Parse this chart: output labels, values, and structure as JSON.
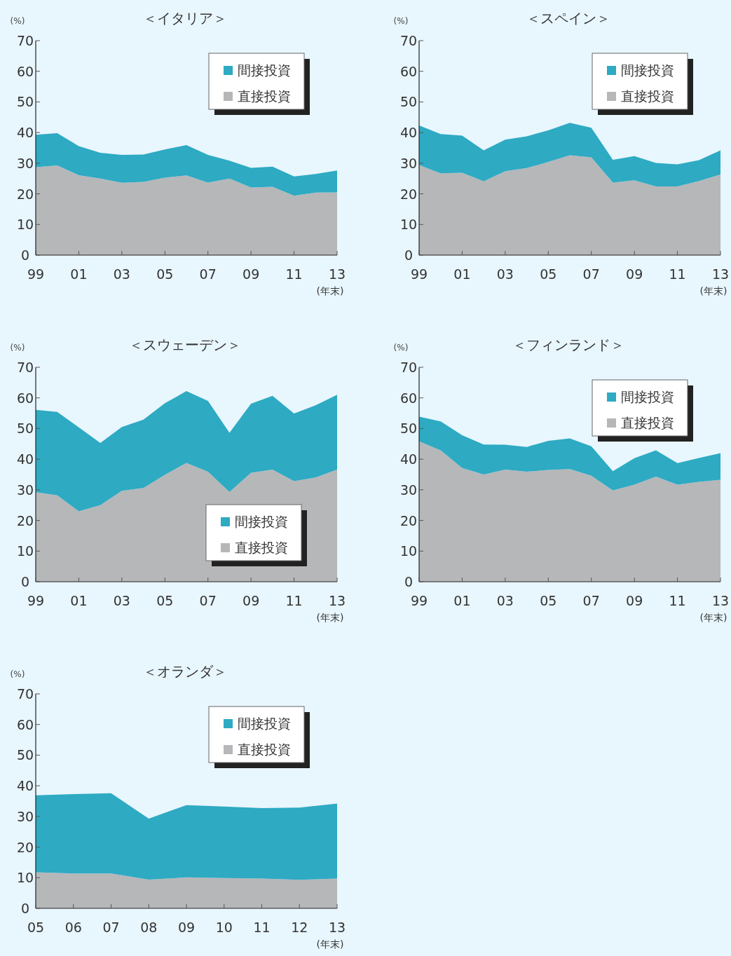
{
  "chart_data": [
    {
      "type": "area",
      "title": "＜イタリア＞",
      "ylabel": "(%)",
      "xlabel": "(年末)",
      "stacked": true,
      "legend": "top right",
      "ylim": [
        0,
        70
      ],
      "yticks": [
        0,
        10,
        20,
        30,
        40,
        50,
        60,
        70
      ],
      "categories": [
        "99",
        null,
        "01",
        null,
        "03",
        null,
        "05",
        null,
        "07",
        null,
        "09",
        null,
        "11",
        null,
        "13"
      ],
      "series": [
        {
          "name": "直接投資",
          "color": "#b6b7b9",
          "values": [
            28.7,
            29.3,
            26.1,
            25.0,
            23.6,
            23.9,
            25.3,
            26.0,
            23.7,
            25.0,
            22.1,
            22.3,
            19.4,
            20.4,
            20.5
          ]
        },
        {
          "name": "間接投資",
          "color": "#2eaac3",
          "values": [
            10.6,
            10.5,
            9.5,
            8.4,
            9.1,
            8.9,
            9.2,
            9.9,
            9.0,
            5.8,
            6.4,
            6.6,
            6.3,
            6.1,
            7.1
          ]
        }
      ]
    },
    {
      "type": "area",
      "title": "＜スペイン＞",
      "ylabel": "(%)",
      "xlabel": "(年末)",
      "stacked": true,
      "legend": "top right",
      "ylim": [
        0,
        70
      ],
      "yticks": [
        0,
        10,
        20,
        30,
        40,
        50,
        60,
        70
      ],
      "categories": [
        "99",
        null,
        "01",
        null,
        "03",
        null,
        "05",
        null,
        "07",
        null,
        "09",
        null,
        "11",
        null,
        "13"
      ],
      "series": [
        {
          "name": "直接投資",
          "color": "#b6b7b9",
          "values": [
            29.4,
            26.7,
            26.9,
            24.1,
            27.4,
            28.4,
            30.4,
            32.6,
            31.9,
            23.7,
            24.4,
            22.4,
            22.4,
            24.2,
            26.3
          ]
        },
        {
          "name": "間接投資",
          "color": "#2eaac3",
          "values": [
            12.9,
            12.8,
            12.1,
            10.1,
            10.3,
            10.4,
            10.3,
            10.6,
            9.7,
            7.4,
            7.9,
            7.7,
            7.2,
            6.8,
            7.9
          ]
        }
      ]
    },
    {
      "type": "area",
      "title": "＜スウェーデン＞",
      "ylabel": "(%)",
      "xlabel": "(年末)",
      "stacked": true,
      "legend": "bottom right",
      "ylim": [
        0,
        70
      ],
      "yticks": [
        0,
        10,
        20,
        30,
        40,
        50,
        60,
        70
      ],
      "categories": [
        "99",
        null,
        "01",
        null,
        "03",
        null,
        "05",
        null,
        "07",
        null,
        "09",
        null,
        "11",
        null,
        "13"
      ],
      "series": [
        {
          "name": "直接投資",
          "color": "#b6b7b9",
          "values": [
            29.2,
            28.2,
            23.0,
            25.0,
            29.7,
            30.6,
            34.9,
            38.8,
            35.9,
            29.3,
            35.6,
            36.6,
            32.8,
            34.0,
            36.6
          ]
        },
        {
          "name": "間接投資",
          "color": "#2eaac3",
          "values": [
            26.9,
            27.2,
            27.4,
            20.3,
            20.8,
            22.3,
            23.4,
            23.4,
            23.1,
            19.3,
            22.5,
            24.1,
            22.1,
            23.6,
            24.4
          ]
        }
      ]
    },
    {
      "type": "area",
      "title": "＜フィンランド＞",
      "ylabel": "(%)",
      "xlabel": "(年末)",
      "stacked": true,
      "legend": "top right",
      "ylim": [
        0,
        70
      ],
      "yticks": [
        0,
        10,
        20,
        30,
        40,
        50,
        60,
        70
      ],
      "categories": [
        "99",
        null,
        "01",
        null,
        "03",
        null,
        "05",
        null,
        "07",
        null,
        "09",
        null,
        "11",
        null,
        "13"
      ],
      "series": [
        {
          "name": "直接投資",
          "color": "#b6b7b9",
          "values": [
            45.8,
            42.9,
            37.1,
            35.0,
            36.6,
            35.9,
            36.5,
            36.8,
            34.6,
            29.8,
            31.7,
            34.3,
            31.7,
            32.6,
            33.3
          ]
        },
        {
          "name": "間接投資",
          "color": "#2eaac3",
          "values": [
            8.1,
            9.4,
            10.7,
            9.8,
            8.1,
            8.1,
            9.5,
            10.0,
            9.6,
            6.3,
            8.6,
            8.6,
            7.0,
            7.8,
            8.7
          ]
        }
      ]
    },
    {
      "type": "area",
      "title": "＜オランダ＞",
      "ylabel": "(%)",
      "xlabel": "(年末)",
      "stacked": true,
      "legend": "top right",
      "ylim": [
        0,
        70
      ],
      "yticks": [
        0,
        10,
        20,
        30,
        40,
        50,
        60,
        70
      ],
      "categories": [
        "05",
        "06",
        "07",
        "08",
        "09",
        "10",
        "11",
        "12",
        "13"
      ],
      "series": [
        {
          "name": "直接投資",
          "color": "#b6b7b9",
          "values": [
            11.8,
            11.4,
            11.4,
            9.4,
            10.1,
            9.9,
            9.7,
            9.3,
            9.7
          ]
        },
        {
          "name": "間接投資",
          "color": "#2eaac3",
          "values": [
            25.1,
            25.9,
            26.2,
            19.9,
            23.6,
            23.3,
            23.0,
            23.6,
            24.5
          ]
        }
      ]
    }
  ]
}
